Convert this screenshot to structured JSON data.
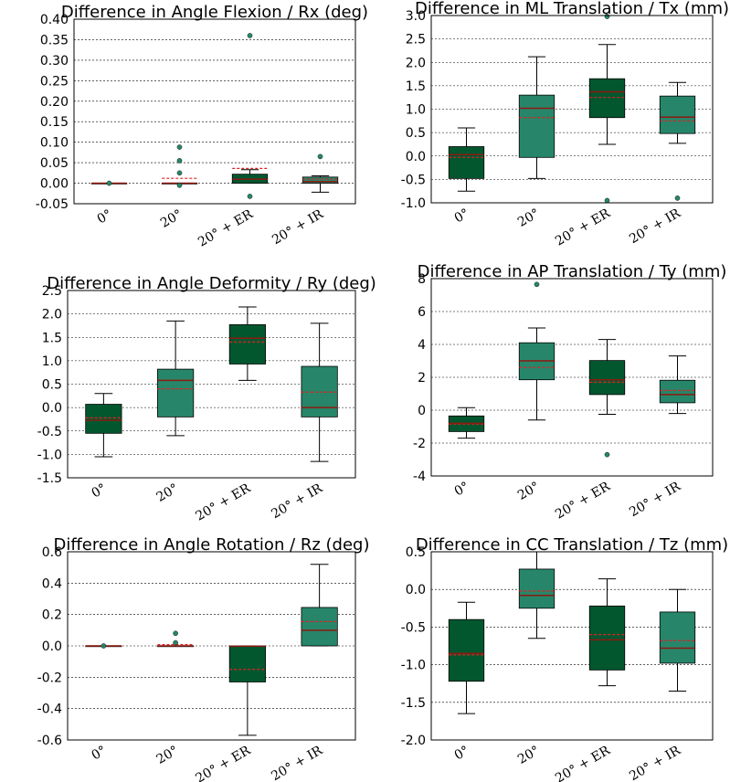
{
  "colors": {
    "dark": "#03572f",
    "light": "#27866a",
    "median": "#8b1a10",
    "mean": "#d22222"
  },
  "chart_data": [
    {
      "type": "box",
      "title": "Difference in Angle Flexion / Rx (deg)",
      "categories": [
        "0°",
        "20°",
        "20° + ER",
        "20° + IR"
      ],
      "ylim": [
        -0.05,
        0.4
      ],
      "yticks": [
        "-0.05",
        "0.00",
        "0.05",
        "0.10",
        "0.15",
        "0.20",
        "0.25",
        "0.30",
        "0.35",
        "0.40"
      ],
      "boxes": [
        {
          "whislo": 0,
          "q1": 0,
          "med": 0,
          "q3": 0,
          "whishi": 0,
          "mean": 0,
          "fliers": [
            0
          ]
        },
        {
          "whislo": 0,
          "q1": 0,
          "med": 0,
          "q3": 0,
          "whishi": 0,
          "mean": 0.012,
          "fliers": [
            0.088,
            0.055,
            0.025,
            -0.005
          ]
        },
        {
          "whislo": 0,
          "q1": 0,
          "med": 0.01,
          "q3": 0.022,
          "whishi": 0.033,
          "mean": 0.036,
          "fliers": [
            0.36,
            -0.032
          ]
        },
        {
          "whislo": -0.022,
          "q1": 0,
          "med": 0.004,
          "q3": 0.015,
          "whishi": 0.018,
          "mean": 0.01,
          "fliers": [
            0.065
          ]
        }
      ]
    },
    {
      "type": "box",
      "title": "Difference in ML Translation / Tx (mm)",
      "categories": [
        "0°",
        "20°",
        "20° + ER",
        "20° + IR"
      ],
      "ylim": [
        -1.0,
        3.0
      ],
      "yticks": [
        "-1.0",
        "-0.5",
        "0.0",
        "0.5",
        "1.0",
        "1.5",
        "2.0",
        "2.5",
        "3.0"
      ],
      "boxes": [
        {
          "whislo": -0.75,
          "q1": -0.48,
          "med": 0.03,
          "q3": 0.2,
          "whishi": 0.6,
          "mean": -0.03,
          "fliers": []
        },
        {
          "whislo": -0.48,
          "q1": -0.03,
          "med": 1.02,
          "q3": 1.3,
          "whishi": 2.12,
          "mean": 0.82,
          "fliers": []
        },
        {
          "whislo": 0.25,
          "q1": 0.82,
          "med": 1.37,
          "q3": 1.65,
          "whishi": 2.38,
          "mean": 1.25,
          "fliers": [
            2.98,
            -0.95
          ]
        },
        {
          "whislo": 0.27,
          "q1": 0.48,
          "med": 0.83,
          "q3": 1.28,
          "whishi": 1.57,
          "mean": 0.75,
          "fliers": [
            -0.9
          ]
        }
      ]
    },
    {
      "type": "box",
      "title": "Difference in Angle Deformity / Ry (deg)",
      "categories": [
        "0°",
        "20°",
        "20° + ER",
        "20° + IR"
      ],
      "ylim": [
        -1.5,
        2.5
      ],
      "yticks": [
        "-1.5",
        "-1.0",
        "-0.5",
        "0.0",
        "0.5",
        "1.0",
        "1.5",
        "2.0",
        "2.5"
      ],
      "boxes": [
        {
          "whislo": -1.05,
          "q1": -0.55,
          "med": -0.27,
          "q3": 0.07,
          "whishi": 0.3,
          "mean": -0.22,
          "fliers": []
        },
        {
          "whislo": -0.6,
          "q1": -0.2,
          "med": 0.58,
          "q3": 0.82,
          "whishi": 1.85,
          "mean": 0.4,
          "fliers": []
        },
        {
          "whislo": 0.58,
          "q1": 0.93,
          "med": 1.48,
          "q3": 1.77,
          "whishi": 2.15,
          "mean": 1.4,
          "fliers": []
        },
        {
          "whislo": -1.15,
          "q1": -0.2,
          "med": 0,
          "q3": 0.88,
          "whishi": 1.8,
          "mean": 0.33,
          "fliers": []
        }
      ]
    },
    {
      "type": "box",
      "title": "Difference in AP Translation / Ty (mm)",
      "categories": [
        "0°",
        "20°",
        "20° + ER",
        "20° + IR"
      ],
      "ylim": [
        -4,
        8
      ],
      "yticks": [
        "-4",
        "-2",
        "0",
        "2",
        "4",
        "6",
        "8"
      ],
      "boxes": [
        {
          "whislo": -1.7,
          "q1": -1.3,
          "med": -0.8,
          "q3": -0.35,
          "whishi": 0.15,
          "mean": -0.85,
          "fliers": []
        },
        {
          "whislo": -0.6,
          "q1": 1.85,
          "med": 3.0,
          "q3": 4.1,
          "whishi": 5.0,
          "mean": 2.6,
          "fliers": [
            7.65
          ]
        },
        {
          "whislo": -0.25,
          "q1": 0.95,
          "med": 1.85,
          "q3": 3.02,
          "whishi": 4.3,
          "mean": 1.7,
          "fliers": [
            -2.7
          ]
        },
        {
          "whislo": -0.2,
          "q1": 0.45,
          "med": 0.95,
          "q3": 1.82,
          "whishi": 3.3,
          "mean": 1.2,
          "fliers": []
        }
      ]
    },
    {
      "type": "box",
      "title": "Difference in Angle Rotation / Rz (deg)",
      "categories": [
        "0°",
        "20°",
        "20° + ER",
        "20° + IR"
      ],
      "ylim": [
        -0.6,
        0.6
      ],
      "yticks": [
        "-0.6",
        "-0.4",
        "-0.2",
        "0.0",
        "0.2",
        "0.4",
        "0.6"
      ],
      "boxes": [
        {
          "whislo": 0,
          "q1": 0,
          "med": 0,
          "q3": 0,
          "whishi": 0,
          "mean": 0,
          "fliers": [
            0
          ]
        },
        {
          "whislo": 0,
          "q1": 0,
          "med": 0,
          "q3": 0,
          "whishi": 0,
          "mean": 0.008,
          "fliers": [
            0.08,
            0.02
          ]
        },
        {
          "whislo": -0.57,
          "q1": -0.23,
          "med": -0.002,
          "q3": 0,
          "whishi": 0,
          "mean": -0.15,
          "fliers": []
        },
        {
          "whislo": 0,
          "q1": 0,
          "med": 0.1,
          "q3": 0.245,
          "whishi": 0.52,
          "mean": 0.155,
          "fliers": []
        }
      ]
    },
    {
      "type": "box",
      "title": "Difference in CC Translation / Tz (mm)",
      "categories": [
        "0°",
        "20°",
        "20° + ER",
        "20° + IR"
      ],
      "ylim": [
        -2.0,
        0.5
      ],
      "yticks": [
        "-2.0",
        "-1.5",
        "-1.0",
        "-0.5",
        "0.0",
        "0.5"
      ],
      "boxes": [
        {
          "whislo": -1.65,
          "q1": -1.22,
          "med": -0.85,
          "q3": -0.4,
          "whishi": -0.17,
          "mean": -0.87,
          "fliers": []
        },
        {
          "whislo": -0.65,
          "q1": -0.25,
          "med": -0.08,
          "q3": 0.27,
          "whishi": 0.5,
          "mean": -0.02,
          "fliers": []
        },
        {
          "whislo": -1.28,
          "q1": -1.07,
          "med": -0.67,
          "q3": -0.22,
          "whishi": 0.14,
          "mean": -0.6,
          "fliers": []
        },
        {
          "whislo": -1.35,
          "q1": -0.98,
          "med": -0.78,
          "q3": -0.3,
          "whishi": 0,
          "mean": -0.68,
          "fliers": []
        }
      ]
    }
  ]
}
